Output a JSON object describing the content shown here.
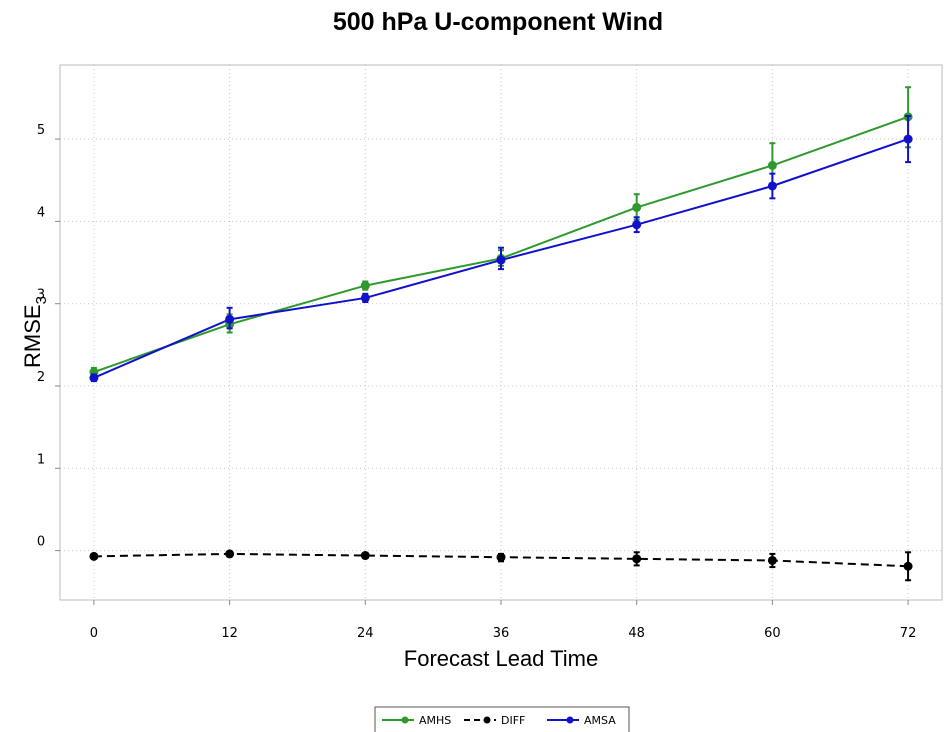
{
  "chart_data": {
    "type": "line",
    "title": "500 hPa U-component Wind",
    "xlabel": "Forecast Lead Time",
    "ylabel": "RMSE",
    "ylabel_subscript": "3",
    "x": [
      0,
      12,
      24,
      36,
      48,
      60,
      72
    ],
    "xlim": [
      -3,
      75
    ],
    "ylim": [
      -0.6,
      5.9
    ],
    "xticks": [
      "0",
      "12",
      "24",
      "36",
      "48",
      "60",
      "72"
    ],
    "yticks": [
      "0",
      "1",
      "2",
      "3",
      "4",
      "5"
    ],
    "grid": true,
    "legend_position": "bottom-center",
    "series": [
      {
        "name": "AMHS",
        "color": "#2e9a2e",
        "dash": "solid",
        "values": [
          2.17,
          2.75,
          3.22,
          3.55,
          4.17,
          4.68,
          5.27
        ],
        "err_low": [
          2.13,
          2.65,
          3.17,
          3.46,
          4.02,
          4.45,
          4.9
        ],
        "err_high": [
          2.22,
          2.87,
          3.27,
          3.65,
          4.33,
          4.95,
          5.63
        ]
      },
      {
        "name": "DIFF",
        "color": "#000000",
        "dash": "dashed",
        "values": [
          -0.07,
          -0.04,
          -0.06,
          -0.08,
          -0.1,
          -0.12,
          -0.19
        ],
        "err_low": [
          -0.09,
          -0.06,
          -0.09,
          -0.13,
          -0.18,
          -0.2,
          -0.36
        ],
        "err_high": [
          -0.05,
          -0.02,
          -0.03,
          -0.04,
          -0.02,
          -0.04,
          -0.02
        ]
      },
      {
        "name": "AMSA",
        "color": "#1111cc",
        "dash": "solid",
        "values": [
          2.1,
          2.81,
          3.07,
          3.53,
          3.96,
          4.43,
          5.0
        ],
        "err_low": [
          2.06,
          2.7,
          3.02,
          3.42,
          3.87,
          4.28,
          4.72
        ],
        "err_high": [
          2.14,
          2.95,
          3.12,
          3.68,
          4.05,
          4.58,
          5.28
        ]
      }
    ]
  }
}
